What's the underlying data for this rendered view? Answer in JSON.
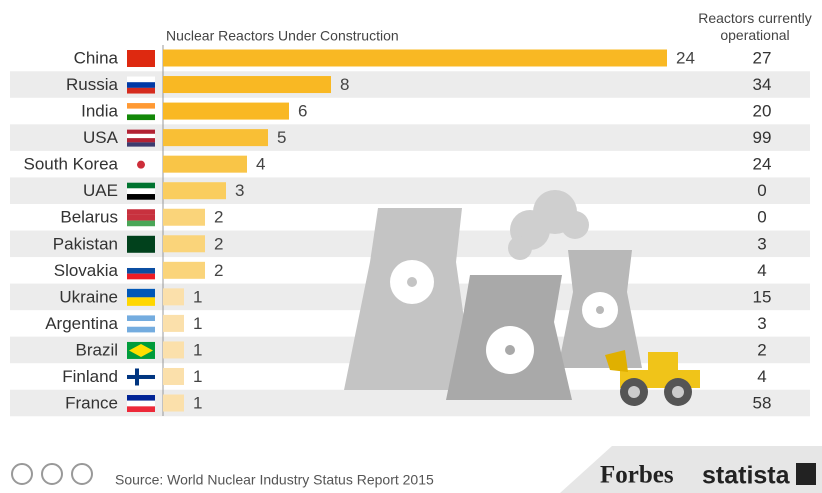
{
  "chart_data": {
    "type": "bar",
    "title": "Nuclear Reactors Under Construction",
    "column_title": "Reactors currently operational",
    "categories": [
      "China",
      "Russia",
      "India",
      "USA",
      "South Korea",
      "UAE",
      "Belarus",
      "Pakistan",
      "Slovakia",
      "Ukraine",
      "Argentina",
      "Brazil",
      "Finland",
      "France"
    ],
    "values": [
      24,
      8,
      6,
      5,
      4,
      3,
      2,
      2,
      2,
      1,
      1,
      1,
      1,
      1
    ],
    "colors": [
      "#f9b823",
      "#f9b823",
      "#f9b823",
      "#f9bf35",
      "#f9c547",
      "#facd5e",
      "#fad47a",
      "#fad47a",
      "#fad47a",
      "#fbe0ab",
      "#fbe0ab",
      "#fbe0ab",
      "#fbe0ab",
      "#fbe0ab"
    ],
    "operational": [
      27,
      34,
      20,
      99,
      24,
      0,
      0,
      3,
      4,
      15,
      3,
      2,
      4,
      58
    ],
    "source": "Source: World Nuclear Industry Status Report 2015",
    "brands": [
      "Forbes",
      "statista"
    ]
  }
}
